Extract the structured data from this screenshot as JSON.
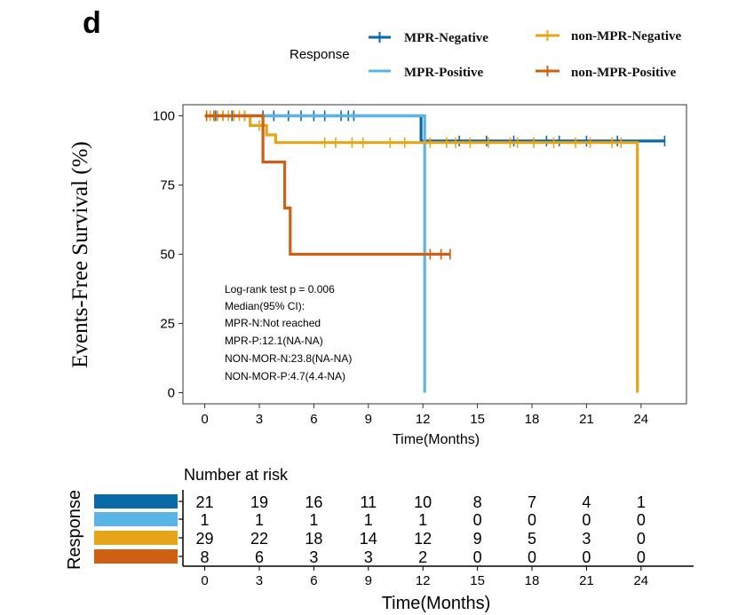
{
  "panel_label": "d",
  "legend": {
    "title": "Response",
    "entries": [
      {
        "label": "MPR-Negative",
        "color": "#0a6aa8"
      },
      {
        "label": "MPR-Positive",
        "color": "#5ab4e6"
      },
      {
        "label": "non-MPR-Negative",
        "color": "#e6a519"
      },
      {
        "label": "non-MPR-Positive",
        "color": "#cf5f12"
      }
    ]
  },
  "stats_text": [
    "Log-rank test p = 0.006",
    "Median(95% CI):",
    "MPR-N:Not reached",
    "MPR-P:12.1(NA-NA)",
    "NON-MOR-N:23.8(NA-NA)",
    "NON-MOR-P:4.7(4.4-NA)"
  ],
  "chart_data": [
    {
      "type": "line",
      "subtype": "kaplan-meier",
      "title": "",
      "xlabel": "Time(Months)",
      "ylabel": "Events-Free Survival (%)",
      "xlim": [
        -1.2,
        26.5
      ],
      "ylim": [
        -4,
        104
      ],
      "x_ticks": [
        0,
        3,
        6,
        9,
        12,
        15,
        18,
        21,
        24
      ],
      "y_ticks": [
        0,
        25,
        50,
        75,
        100
      ],
      "grid": false,
      "legend_position": "top",
      "series": [
        {
          "name": "MPR-Negative",
          "color": "#0a6aa8",
          "steps": [
            [
              0,
              100
            ],
            [
              11.9,
              100
            ],
            [
              11.9,
              90.9
            ],
            [
              25.3,
              90.9
            ]
          ],
          "censor": [
            0.6,
            1.0,
            1.5,
            2.2,
            3.2,
            3.8,
            4.6,
            5.3,
            6.0,
            6.6,
            7.5,
            7.9,
            8.2,
            14.0,
            15.5,
            17.0,
            18.8,
            19.5,
            21.0,
            22.7,
            25.3
          ]
        },
        {
          "name": "MPR-Positive",
          "color": "#5ab4e6",
          "steps": [
            [
              0,
              100
            ],
            [
              12.1,
              100
            ],
            [
              12.1,
              0
            ]
          ],
          "censor": []
        },
        {
          "name": "non-MPR-Negative",
          "color": "#e6a519",
          "steps": [
            [
              0,
              100
            ],
            [
              2.5,
              100
            ],
            [
              2.5,
              96.5
            ],
            [
              3.4,
              96.5
            ],
            [
              3.4,
              93.1
            ],
            [
              3.9,
              93.1
            ],
            [
              3.9,
              90.3
            ],
            [
              23.8,
              90.3
            ],
            [
              23.8,
              0
            ]
          ],
          "censor": [
            0.3,
            0.7,
            1.0,
            1.3,
            1.6,
            1.9,
            2.2,
            3.0,
            6.6,
            7.2,
            8.1,
            8.7,
            10.2,
            11.0,
            12.4,
            13.3,
            13.8,
            14.6,
            15.6,
            16.8,
            17.2,
            18.1,
            19.2,
            20.4,
            21.2,
            22.4,
            22.9
          ]
        },
        {
          "name": "non-MPR-Positive",
          "color": "#cf5f12",
          "steps": [
            [
              0,
              100
            ],
            [
              3.2,
              100
            ],
            [
              3.2,
              83.3
            ],
            [
              4.4,
              83.3
            ],
            [
              4.4,
              66.7
            ],
            [
              4.7,
              66.7
            ],
            [
              4.7,
              50
            ],
            [
              13.5,
              50
            ]
          ],
          "censor": [
            0.1,
            0.5,
            12.4,
            13.0,
            13.5
          ]
        }
      ]
    },
    {
      "type": "table",
      "title": "Number at risk",
      "xlabel": "Time(Months)",
      "ylabel": "Response",
      "times": [
        0,
        3,
        6,
        9,
        12,
        15,
        18,
        21,
        24
      ],
      "rows": [
        {
          "name": "MPR-Negative",
          "color": "#0a6aa8",
          "values": [
            21,
            19,
            16,
            11,
            10,
            8,
            7,
            4,
            1
          ]
        },
        {
          "name": "MPR-Positive",
          "color": "#5ab4e6",
          "values": [
            1,
            1,
            1,
            1,
            1,
            0,
            0,
            0,
            0
          ]
        },
        {
          "name": "non-MPR-Negative",
          "color": "#e6a519",
          "values": [
            29,
            22,
            18,
            14,
            12,
            9,
            5,
            3,
            0
          ]
        },
        {
          "name": "non-MPR-Positive",
          "color": "#cf5f12",
          "values": [
            8,
            6,
            3,
            3,
            2,
            0,
            0,
            0,
            0
          ]
        }
      ]
    }
  ]
}
